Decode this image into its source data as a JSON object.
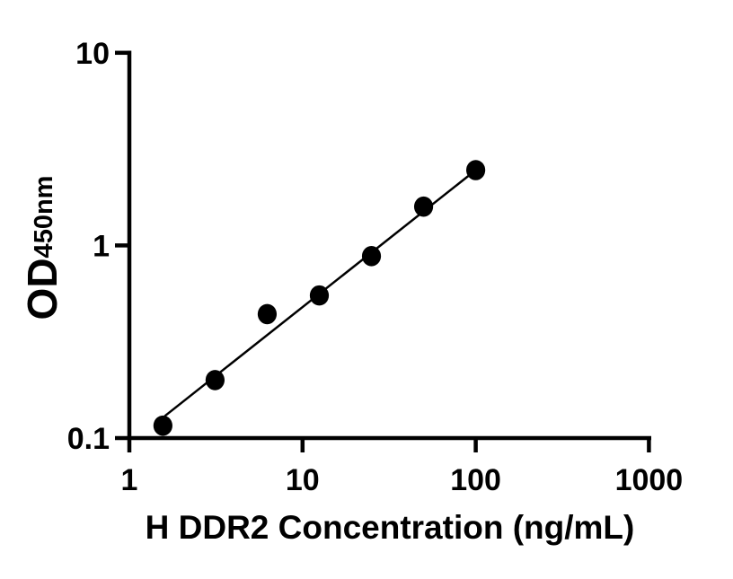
{
  "figure": {
    "background": "#ffffff",
    "description": "ELISA standard curve scatter plot with linear fit on log-log axes"
  },
  "chart_data": {
    "type": "scatter",
    "title": "",
    "xlabel": "H DDR2 Concentration (ng/mL)",
    "ylabel": "OD",
    "ylabel_sub": "450nm",
    "x_scale": "log",
    "y_scale": "log",
    "xlim": [
      1,
      1000
    ],
    "ylim": [
      0.1,
      10
    ],
    "grid": false,
    "legend": false,
    "x_ticks": {
      "values": [
        1,
        10,
        100,
        1000
      ],
      "labels": [
        "1",
        "10",
        "100",
        "1000"
      ]
    },
    "y_ticks": {
      "values": [
        0.1,
        1,
        10
      ],
      "labels": [
        "0.1",
        "1",
        "10"
      ]
    },
    "series": [
      {
        "name": "standard-curve-points",
        "type": "scatter",
        "marker": "filled-circle",
        "color": "#000000",
        "x": [
          1.5625,
          3.125,
          6.25,
          12.5,
          25,
          50,
          100
        ],
        "y": [
          0.116,
          0.2,
          0.44,
          0.55,
          0.88,
          1.59,
          2.46
        ]
      },
      {
        "name": "linear-fit-line",
        "type": "line",
        "color": "#000000",
        "x": [
          1.6,
          100
        ],
        "y": [
          0.13,
          2.46
        ]
      }
    ],
    "colors": {
      "axis": "#000000",
      "text": "#000000",
      "points": "#000000",
      "line": "#000000",
      "background": "#ffffff"
    }
  }
}
